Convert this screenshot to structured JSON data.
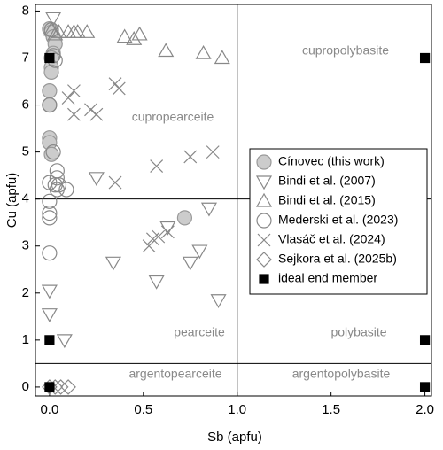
{
  "chart_data": {
    "type": "scatter",
    "x_label": "Sb (apfu)",
    "y_label": "Cu (apfu)",
    "xlim": [
      -0.075,
      2.035
    ],
    "ylim": [
      -0.19,
      8.14
    ],
    "xticks": [
      {
        "value": 0,
        "label": "0.0"
      },
      {
        "value": 0.5,
        "label": "0.5"
      },
      {
        "value": 1,
        "label": "1.0"
      },
      {
        "value": 1.5,
        "label": "1.5"
      },
      {
        "value": 2,
        "label": "2.0"
      }
    ],
    "yticks": [
      0,
      1,
      2,
      3,
      4,
      5,
      6,
      7,
      8
    ],
    "hlines": [
      4,
      0.5
    ],
    "vlines": [
      1
    ],
    "annotations": [
      "cupropolybasite",
      "cupropearceite",
      "pearceite",
      "polybasite",
      "argentopearceite",
      "argentopolybasite"
    ],
    "series": [
      {
        "name": "Cínovec (this work)",
        "marker": "circle-filled",
        "color": "#999999",
        "x": [
          0,
          0.01,
          0.02,
          0.03,
          0.02,
          0.01,
          0.01,
          0.01,
          0,
          0,
          0,
          0,
          0.01,
          0.72
        ],
        "values": [
          7.62,
          7.55,
          7.45,
          7.3,
          7.1,
          7.0,
          6.8,
          6.7,
          6.3,
          6.0,
          5.3,
          5.2,
          4.95,
          3.6
        ]
      },
      {
        "name": "Bindi et al. (2007)",
        "marker": "triangle-down",
        "color": "#888888",
        "x": [
          0.02,
          0.25,
          0.34,
          0.57,
          0.63,
          0.75,
          0.8,
          0.85,
          0.9,
          0,
          0,
          0.08
        ],
        "values": [
          7.85,
          4.45,
          2.65,
          2.25,
          3.4,
          2.65,
          2.9,
          3.8,
          1.85,
          2.05,
          1.55,
          1.0
        ]
      },
      {
        "name": "Bindi et al. (2015)",
        "marker": "triangle-up",
        "color": "#888888",
        "x": [
          0.01,
          0.03,
          0.05,
          0.1,
          0.13,
          0.15,
          0.2,
          0.4,
          0.45,
          0.48,
          0.62,
          0.82,
          0.92
        ],
        "values": [
          7.6,
          7.5,
          7.55,
          7.55,
          7.55,
          7.55,
          7.55,
          7.45,
          7.4,
          7.5,
          7.15,
          7.1,
          7.0
        ]
      },
      {
        "name": "Mederski et al. (2023)",
        "marker": "circle",
        "color": "#888888",
        "x": [
          0.01,
          0.02,
          0.03,
          0,
          0.02,
          0.04,
          0.04,
          0.03,
          0.04,
          0.05,
          0.09,
          0,
          0,
          0,
          0,
          0
        ],
        "values": [
          7.6,
          7.05,
          6.95,
          6.0,
          5.0,
          4.6,
          4.45,
          4.3,
          4.2,
          4.3,
          4.2,
          4.35,
          3.95,
          3.7,
          3.6,
          2.85
        ]
      },
      {
        "name": "Vlasáč et al. (2024)",
        "marker": "cross",
        "color": "#888888",
        "x": [
          0.1,
          0.13,
          0.13,
          0.22,
          0.25,
          0.35,
          0.37,
          0.35,
          0.53,
          0.55,
          0.58,
          0.63,
          0.57,
          0.75,
          0.87
        ],
        "values": [
          6.15,
          6.3,
          5.8,
          5.9,
          5.8,
          6.45,
          6.35,
          4.35,
          3.0,
          3.15,
          3.2,
          3.3,
          4.7,
          4.9,
          5.0
        ]
      },
      {
        "name": "Sejkora et al. (2025b)",
        "marker": "diamond",
        "color": "#888888",
        "x": [
          0,
          0.03,
          0.06,
          0.1
        ],
        "values": [
          0,
          0,
          0,
          0
        ]
      },
      {
        "name": "ideal end member",
        "marker": "square",
        "color": "#000000",
        "x": [
          0,
          2,
          0,
          2,
          0,
          2
        ],
        "values": [
          7,
          7,
          1,
          1,
          0,
          0
        ]
      }
    ]
  }
}
